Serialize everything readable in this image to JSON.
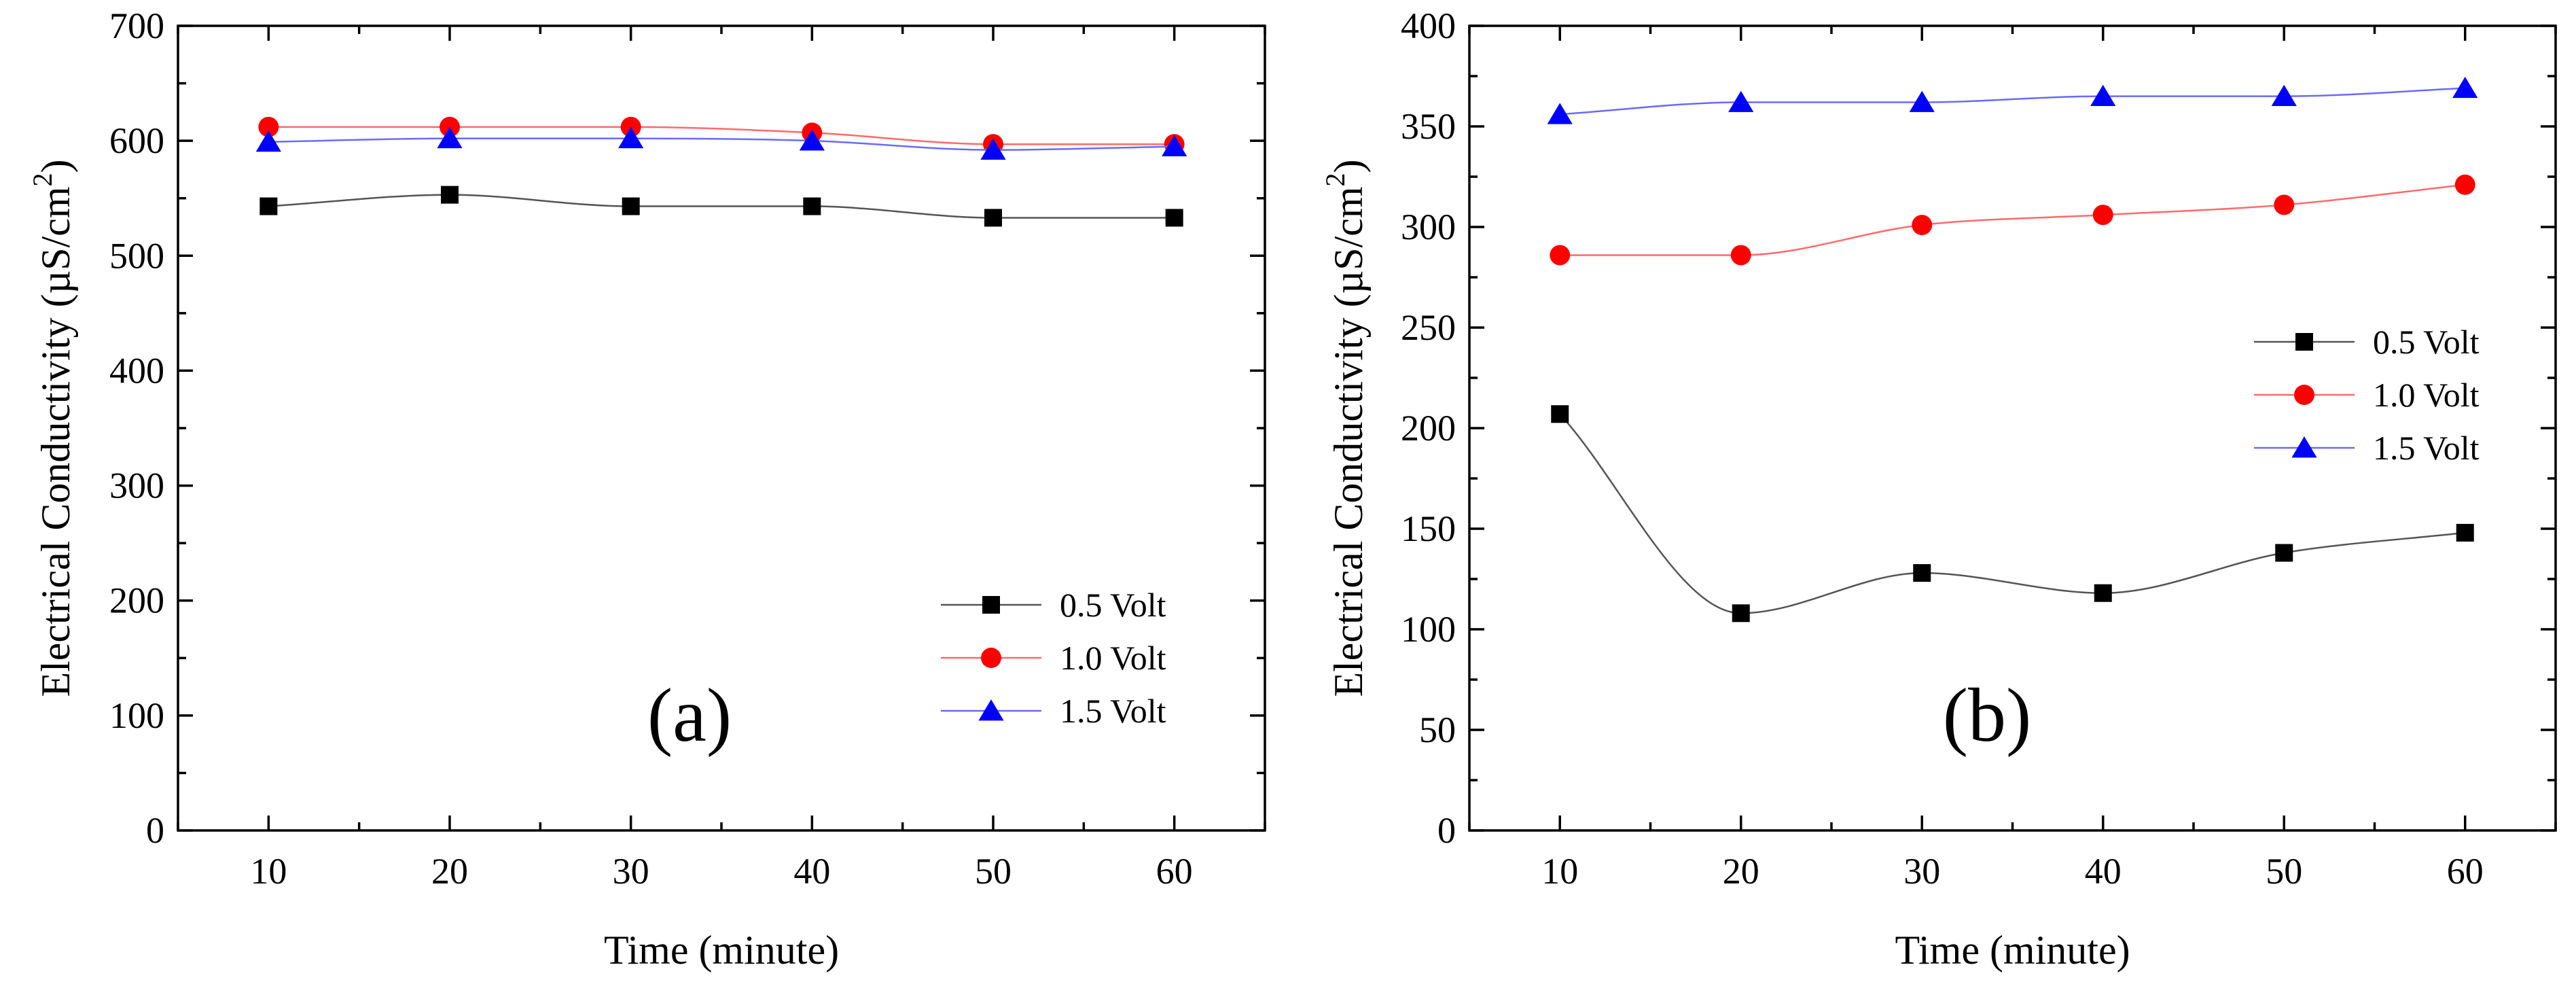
{
  "chart_data": [
    {
      "type": "line",
      "panel_label": "(a)",
      "xlabel": "Time (minute)",
      "ylabel": "Electrical Conductivity (µS/cm",
      "ylabel_sup": "2",
      "ylabel_close": ")",
      "xlim": [
        5,
        65
      ],
      "ylim": [
        0,
        700
      ],
      "x_ticks": [
        10,
        20,
        30,
        40,
        50,
        60
      ],
      "y_ticks": [
        0,
        100,
        200,
        300,
        400,
        500,
        600,
        700
      ],
      "legend_position": "lower-right",
      "x": [
        10,
        20,
        30,
        40,
        50,
        60
      ],
      "series": [
        {
          "name": "0.5 Volt",
          "marker": "square",
          "color": "#000000",
          "line_color": "#555555",
          "values": [
            543,
            553,
            543,
            543,
            533,
            533
          ]
        },
        {
          "name": "1.0 Volt",
          "marker": "circle",
          "color": "#ff0000",
          "line_color": "#ff6a6a",
          "values": [
            612,
            612,
            612,
            607,
            597,
            597
          ]
        },
        {
          "name": "1.5 Volt",
          "marker": "triangle",
          "color": "#0000ff",
          "line_color": "#6a6aff",
          "values": [
            599,
            602,
            602,
            600,
            592,
            595
          ]
        }
      ]
    },
    {
      "type": "line",
      "panel_label": "(b)",
      "xlabel": "Time (minute)",
      "ylabel": "Electrical Conductivity (µS/cm",
      "ylabel_sup": "2",
      "ylabel_close": ")",
      "xlim": [
        5,
        65
      ],
      "ylim": [
        0,
        400
      ],
      "x_ticks": [
        10,
        20,
        30,
        40,
        50,
        60
      ],
      "y_ticks": [
        0,
        50,
        100,
        150,
        200,
        250,
        300,
        350,
        400
      ],
      "legend_position": "middle-right",
      "x": [
        10,
        20,
        30,
        40,
        50,
        60
      ],
      "series": [
        {
          "name": "0.5 Volt",
          "marker": "square",
          "color": "#000000",
          "line_color": "#555555",
          "values": [
            207,
            108,
            128,
            118,
            138,
            148
          ]
        },
        {
          "name": "1.0 Volt",
          "marker": "circle",
          "color": "#ff0000",
          "line_color": "#ff6a6a",
          "values": [
            286,
            286,
            301,
            306,
            311,
            321
          ]
        },
        {
          "name": "1.5 Volt",
          "marker": "triangle",
          "color": "#0000ff",
          "line_color": "#6a6aff",
          "values": [
            356,
            362,
            362,
            365,
            365,
            369
          ]
        }
      ]
    }
  ]
}
